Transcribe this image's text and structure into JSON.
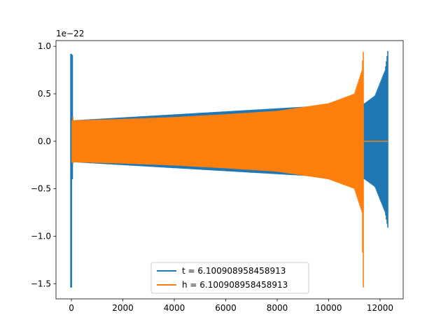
{
  "chart_data": {
    "type": "line",
    "title": "",
    "xlabel": "",
    "ylabel": "",
    "y_offset_label": "1e−22",
    "xlim": [
      -600,
      12900
    ],
    "ylim": [
      -1.66,
      1.06
    ],
    "xticks": [
      0,
      2000,
      4000,
      6000,
      8000,
      10000,
      12000
    ],
    "xtick_labels": [
      "0",
      "2000",
      "4000",
      "6000",
      "8000",
      "10000",
      "12000"
    ],
    "yticks": [
      -1.5,
      -1.0,
      -0.5,
      0.0,
      0.5,
      1.0
    ],
    "ytick_labels": [
      "−1.5",
      "−1.0",
      "−0.5",
      "0.0",
      "0.5",
      "1.0"
    ],
    "grid": false,
    "legend_position": "lower-center",
    "series": [
      {
        "name": "t = 6.100908958458913",
        "color": "#1f77b4",
        "description_points": {
          "x": [
            0,
            30,
            11350,
            11400,
            11800,
            12200,
            12300
          ],
          "y_max": [
            0.92,
            0.22,
            0.4,
            0.4,
            0.48,
            0.75,
            0.95
          ],
          "y_min": [
            -1.54,
            -0.22,
            -0.4,
            -0.4,
            -0.48,
            -0.75,
            -0.91
          ]
        },
        "initial_spike": {
          "x": 0,
          "max": 0.92,
          "min": -1.54
        },
        "final_x": 12300
      },
      {
        "name": "h = 6.100908958458913",
        "color": "#ff7f0e",
        "description_points": {
          "x": [
            30,
            2000,
            4000,
            6000,
            8000,
            10000,
            11000,
            11300,
            11340
          ],
          "y_max": [
            0.22,
            0.235,
            0.255,
            0.285,
            0.32,
            0.4,
            0.5,
            0.75,
            0.94
          ],
          "y_min": [
            -0.22,
            -0.235,
            -0.255,
            -0.285,
            -0.32,
            -0.4,
            -0.5,
            -0.75,
            -1.54
          ]
        },
        "flat_after": {
          "x_start": 11350,
          "x_end": 12300,
          "y": 0.0
        }
      }
    ]
  }
}
